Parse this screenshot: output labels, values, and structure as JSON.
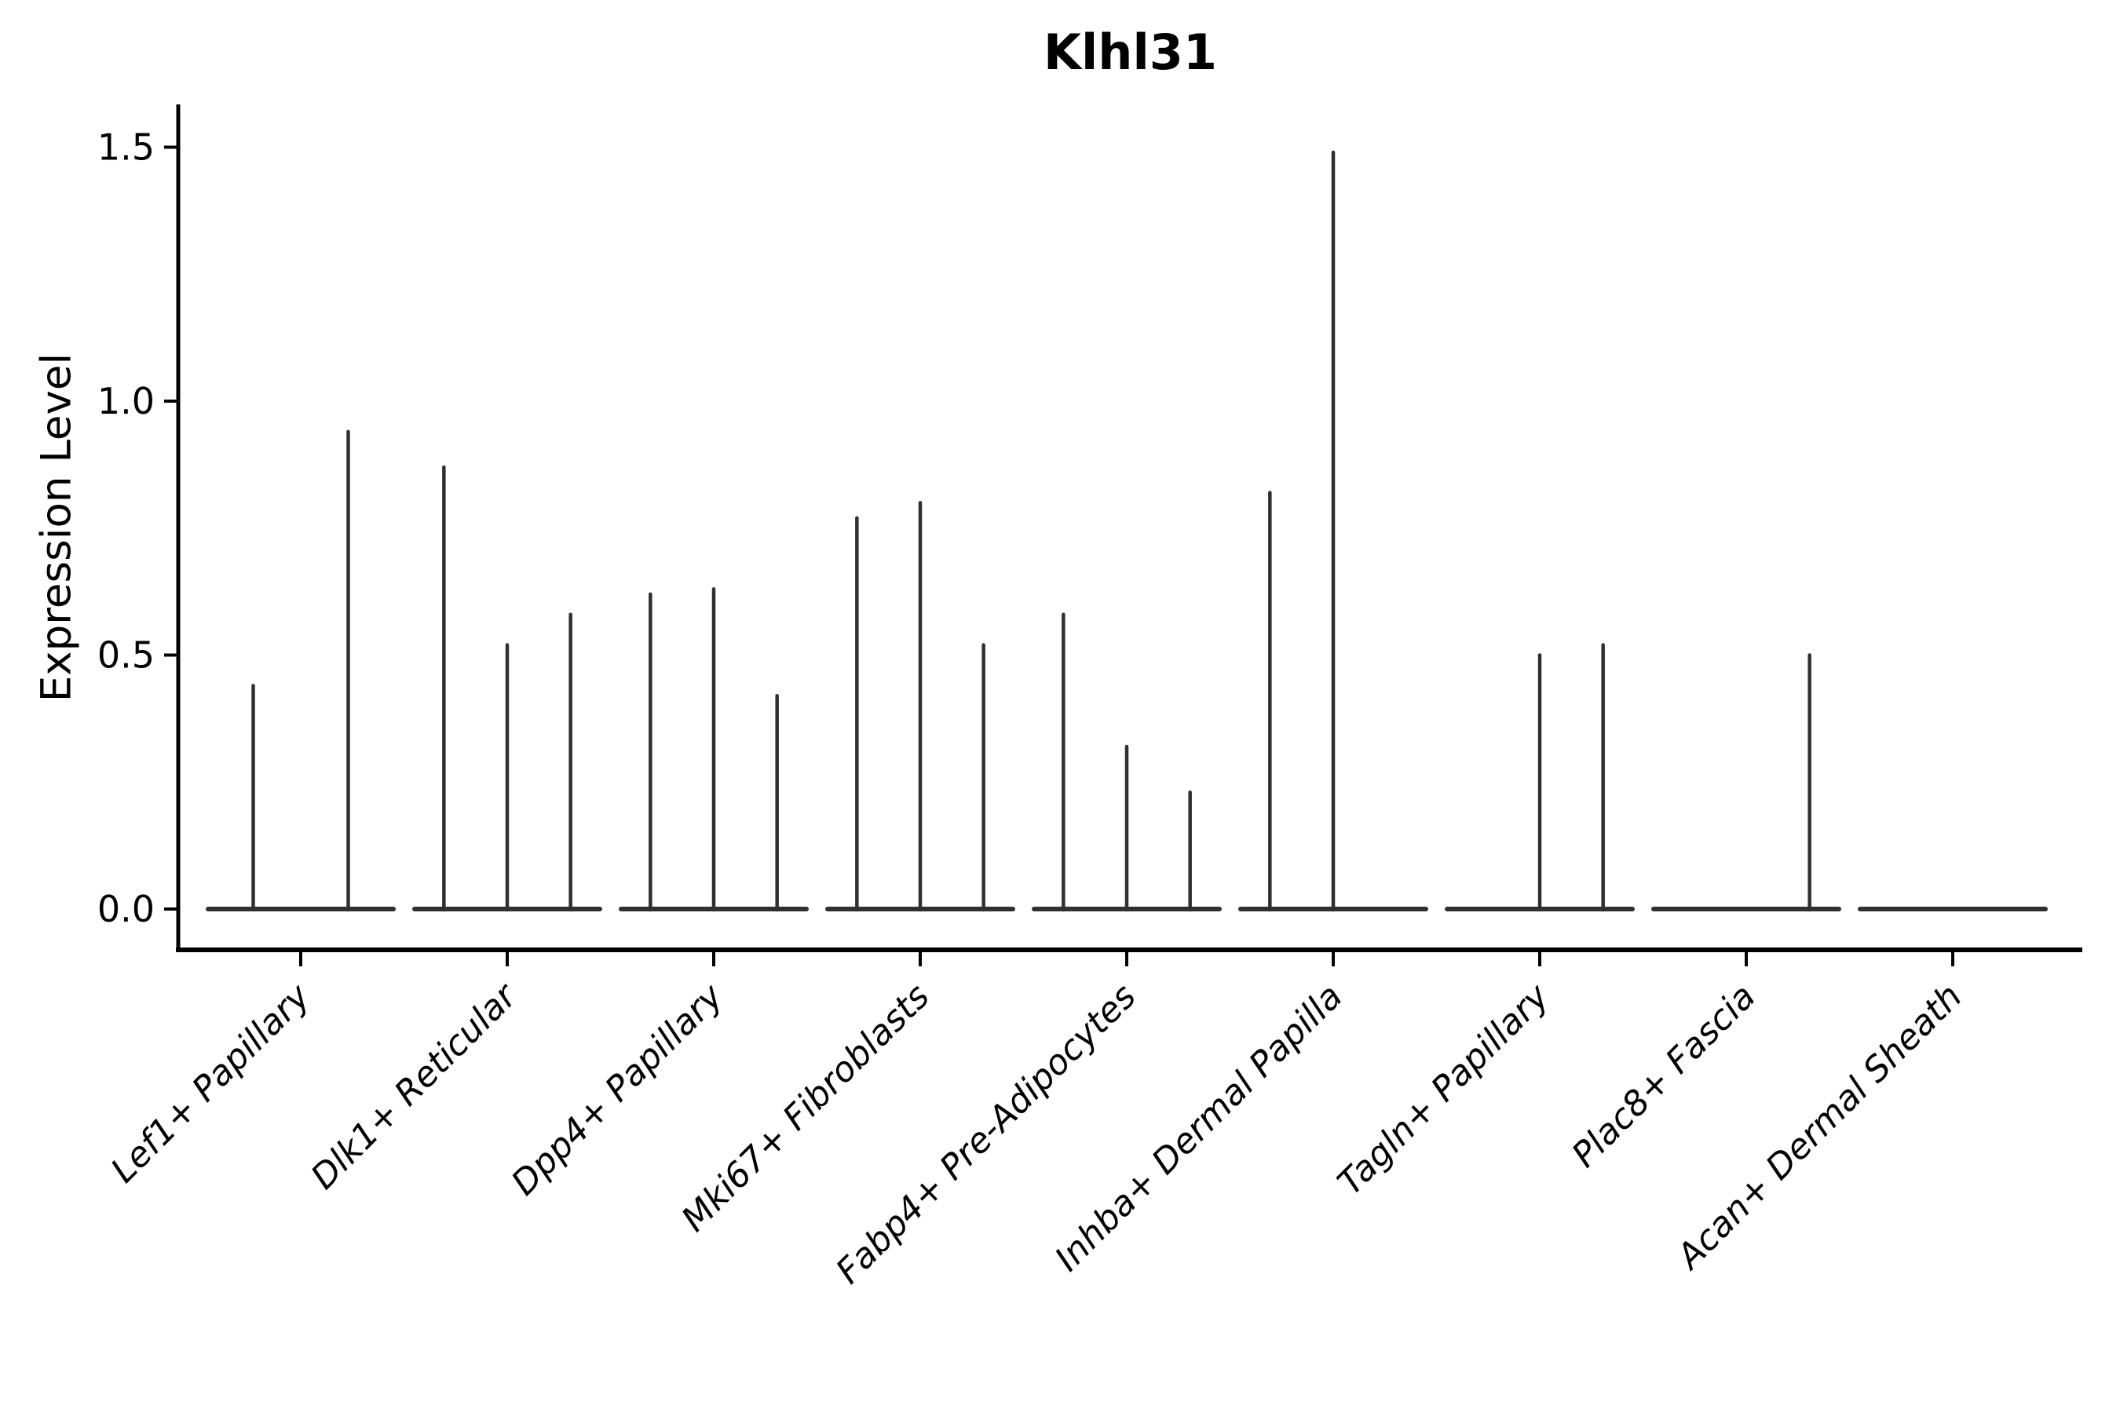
{
  "chart_data": {
    "type": "violin",
    "title": "Klhl31",
    "ylabel": "Expression Level",
    "xlabel": "",
    "ylim": [
      0,
      1.55
    ],
    "grid": false,
    "legend": "none",
    "x_tick_rotation_deg": 45,
    "y_ticks": [
      {
        "label": "0.0",
        "value": 0.0
      },
      {
        "label": "0.5",
        "value": 0.5
      },
      {
        "label": "1.0",
        "value": 1.0
      },
      {
        "label": "1.5",
        "value": 1.5
      }
    ],
    "categories": [
      {
        "label": "Lef1+ Papillary",
        "violin_max_values": [
          0.44,
          0.94
        ]
      },
      {
        "label": "Dlk1+ Reticular",
        "violin_max_values": [
          0.87,
          0.52,
          0.58
        ]
      },
      {
        "label": "Dpp4+ Papillary",
        "violin_max_values": [
          0.62,
          0.63,
          0.42
        ]
      },
      {
        "label": "Mki67+ Fibroblasts",
        "violin_max_values": [
          0.77,
          0.8,
          0.52
        ]
      },
      {
        "label": "Fabp4+ Pre-Adipocytes",
        "violin_max_values": [
          0.58,
          0.32,
          0.23
        ]
      },
      {
        "label": "Inhba+ Dermal Papilla",
        "violin_max_values": [
          0.82,
          1.49,
          0.0
        ]
      },
      {
        "label": "Tagln+ Papillary",
        "violin_max_values": [
          0.0,
          0.5,
          0.52
        ]
      },
      {
        "label": "Plac8+ Fascia",
        "violin_max_values": [
          0.0,
          0.0,
          0.5
        ]
      },
      {
        "label": "Acan+ Dermal Sheath",
        "violin_max_values": [
          0.0,
          0.0,
          0.0
        ]
      }
    ]
  },
  "style": {
    "violin_color": "#303030",
    "axis_color": "#000000"
  }
}
